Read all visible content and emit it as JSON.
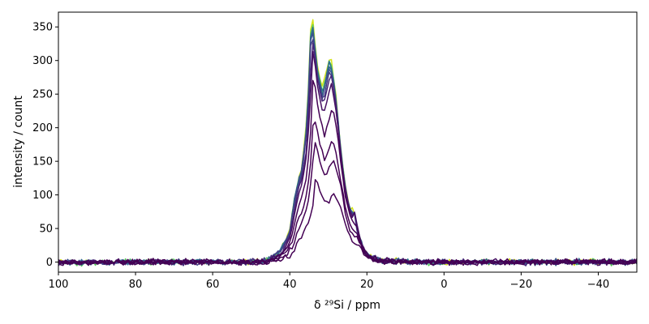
{
  "chart_data": {
    "type": "line",
    "title": "",
    "xlabel": "δ ²⁹Si / ppm",
    "ylabel": "intensity / count",
    "xlim": [
      100,
      -50
    ],
    "ylim": [
      -15,
      372
    ],
    "x_reversed": true,
    "grid": false,
    "legend": "none",
    "xticks": [
      100,
      80,
      60,
      40,
      20,
      0,
      -20,
      -40
    ],
    "xtick_labels": [
      "100",
      "80",
      "60",
      "40",
      "20",
      "0",
      "−20",
      "−40"
    ],
    "yticks": [
      0,
      50,
      100,
      150,
      200,
      250,
      300,
      350
    ],
    "ytick_labels": [
      "0",
      "50",
      "100",
      "150",
      "200",
      "250",
      "300",
      "350"
    ],
    "spectrum_shape": [
      [
        100,
        0
      ],
      [
        50,
        0
      ],
      [
        46,
        3
      ],
      [
        44,
        8
      ],
      [
        42,
        20
      ],
      [
        40,
        45
      ],
      [
        39,
        85
      ],
      [
        38,
        115
      ],
      [
        37,
        135
      ],
      [
        36,
        175
      ],
      [
        35,
        265
      ],
      [
        34.5,
        355
      ],
      [
        34,
        348
      ],
      [
        33.5,
        320
      ],
      [
        33,
        290
      ],
      [
        32,
        262
      ],
      [
        31.5,
        250
      ],
      [
        31,
        262
      ],
      [
        30,
        290
      ],
      [
        29.5,
        300
      ],
      [
        29,
        285
      ],
      [
        28,
        240
      ],
      [
        27,
        180
      ],
      [
        26,
        125
      ],
      [
        25,
        92
      ],
      [
        24,
        72
      ],
      [
        23.5,
        82
      ],
      [
        23,
        65
      ],
      [
        22,
        38
      ],
      [
        21,
        20
      ],
      [
        20,
        12
      ],
      [
        18,
        5
      ],
      [
        15,
        2
      ],
      [
        10,
        0
      ],
      [
        -50,
        0
      ]
    ],
    "series": [
      {
        "color": "#d4e21a",
        "scale": 1.03,
        "shift": 0.0
      },
      {
        "color": "#5ec962",
        "scale": 1.01,
        "shift": 0.0
      },
      {
        "color": "#2c728e",
        "scale": 1.0,
        "shift": 0.0
      },
      {
        "color": "#31688e",
        "scale": 0.99,
        "shift": 0.0
      },
      {
        "color": "#3b528b",
        "scale": 0.98,
        "shift": 0.0
      },
      {
        "color": "#433e85",
        "scale": 0.96,
        "shift": 0.0
      },
      {
        "color": "#482878",
        "scale": 0.93,
        "shift": 0.2
      },
      {
        "color": "#471063",
        "scale": 0.88,
        "shift": 0.3
      },
      {
        "color": "#440154",
        "scale": 0.76,
        "shift": 0.5
      },
      {
        "color": "#440154",
        "scale": 0.61,
        "shift": 0.6
      },
      {
        "color": "#440154",
        "scale": 0.51,
        "shift": 0.8
      },
      {
        "color": "#440154",
        "scale": 0.345,
        "shift": 1.1
      }
    ]
  }
}
